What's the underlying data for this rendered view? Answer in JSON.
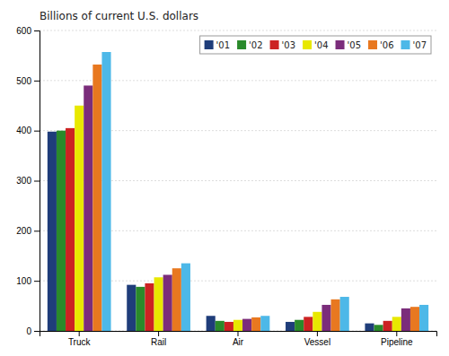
{
  "chart_data": {
    "type": "bar",
    "title": "Billions of current U.S. dollars",
    "categories": [
      "Truck",
      "Rail",
      "Air",
      "Vessel",
      "Pipeline"
    ],
    "series": [
      {
        "name": "'01",
        "color": "#1f3d7a",
        "values": [
          398,
          92,
          30,
          18,
          15
        ]
      },
      {
        "name": "'02",
        "color": "#2a8a2a",
        "values": [
          400,
          88,
          20,
          22,
          12
        ]
      },
      {
        "name": "'03",
        "color": "#cc2222",
        "values": [
          405,
          95,
          18,
          28,
          20
        ]
      },
      {
        "name": "'04",
        "color": "#e8e800",
        "values": [
          450,
          107,
          22,
          38,
          28
        ]
      },
      {
        "name": "'05",
        "color": "#7b2d7b",
        "values": [
          490,
          112,
          24,
          52,
          45
        ]
      },
      {
        "name": "'06",
        "color": "#e87820",
        "values": [
          532,
          125,
          27,
          63,
          48
        ]
      },
      {
        "name": "'07",
        "color": "#4db8e8",
        "values": [
          557,
          135,
          30,
          68,
          52
        ]
      }
    ],
    "ylim": [
      0,
      600
    ],
    "yticks": [
      0,
      100,
      200,
      300,
      400,
      500,
      600
    ],
    "grid": true,
    "legend": "upper right"
  }
}
